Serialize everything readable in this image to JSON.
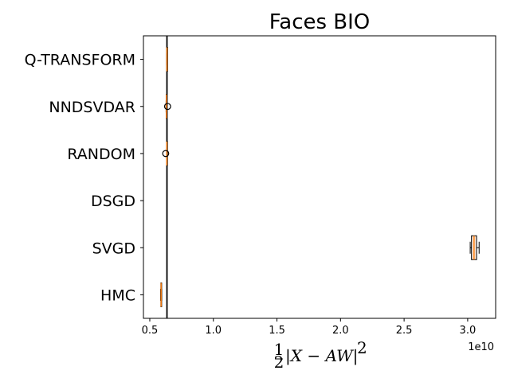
{
  "chart_data": {
    "type": "box",
    "orientation": "horizontal",
    "title": "Faces BIO",
    "xlabel_parts": {
      "frac_num": "1",
      "frac_den": "2",
      "expr": "|X − AW|",
      "power": "2"
    },
    "x_offset_label": "1e10",
    "xlim": [
      0.45,
      3.22
    ],
    "xticks": [
      0.5,
      1.0,
      1.5,
      2.0,
      2.5,
      3.0
    ],
    "xtick_labels": [
      "0.5",
      "1.0",
      "1.5",
      "2.0",
      "2.5",
      "3.0"
    ],
    "reference_line": 0.635,
    "categories": [
      "Q-TRANSFORM",
      "NNDSVDAR",
      "RANDOM",
      "DSGD",
      "SVGD",
      "HMC"
    ],
    "boxes": [
      {
        "name": "Q-TRANSFORM",
        "whislo": 0.633,
        "q1": 0.634,
        "med": 0.635,
        "q3": 0.636,
        "whishi": 0.637,
        "fliers": []
      },
      {
        "name": "NNDSVDAR",
        "whislo": 0.628,
        "q1": 0.629,
        "med": 0.63,
        "q3": 0.631,
        "whishi": 0.632,
        "fliers": [
          0.64
        ]
      },
      {
        "name": "RANDOM",
        "whislo": 0.632,
        "q1": 0.633,
        "med": 0.634,
        "q3": 0.635,
        "whishi": 0.636,
        "fliers": [
          0.625
        ]
      },
      {
        "name": "DSGD",
        "whislo": null,
        "q1": null,
        "med": null,
        "q3": null,
        "whishi": null,
        "fliers": []
      },
      {
        "name": "SVGD",
        "whislo": 3.02,
        "q1": 3.03,
        "med": 3.05,
        "q3": 3.07,
        "whishi": 3.09,
        "fliers": []
      },
      {
        "name": "HMC",
        "whislo": 0.585,
        "q1": 0.587,
        "med": 0.589,
        "q3": 0.591,
        "whishi": 0.593,
        "fliers": []
      }
    ],
    "colors": {
      "box": "#000000",
      "box_fill": "#fbe6d7",
      "median": "#ff7f0e",
      "reference": "#000000"
    },
    "grid": false,
    "legend": "none"
  }
}
